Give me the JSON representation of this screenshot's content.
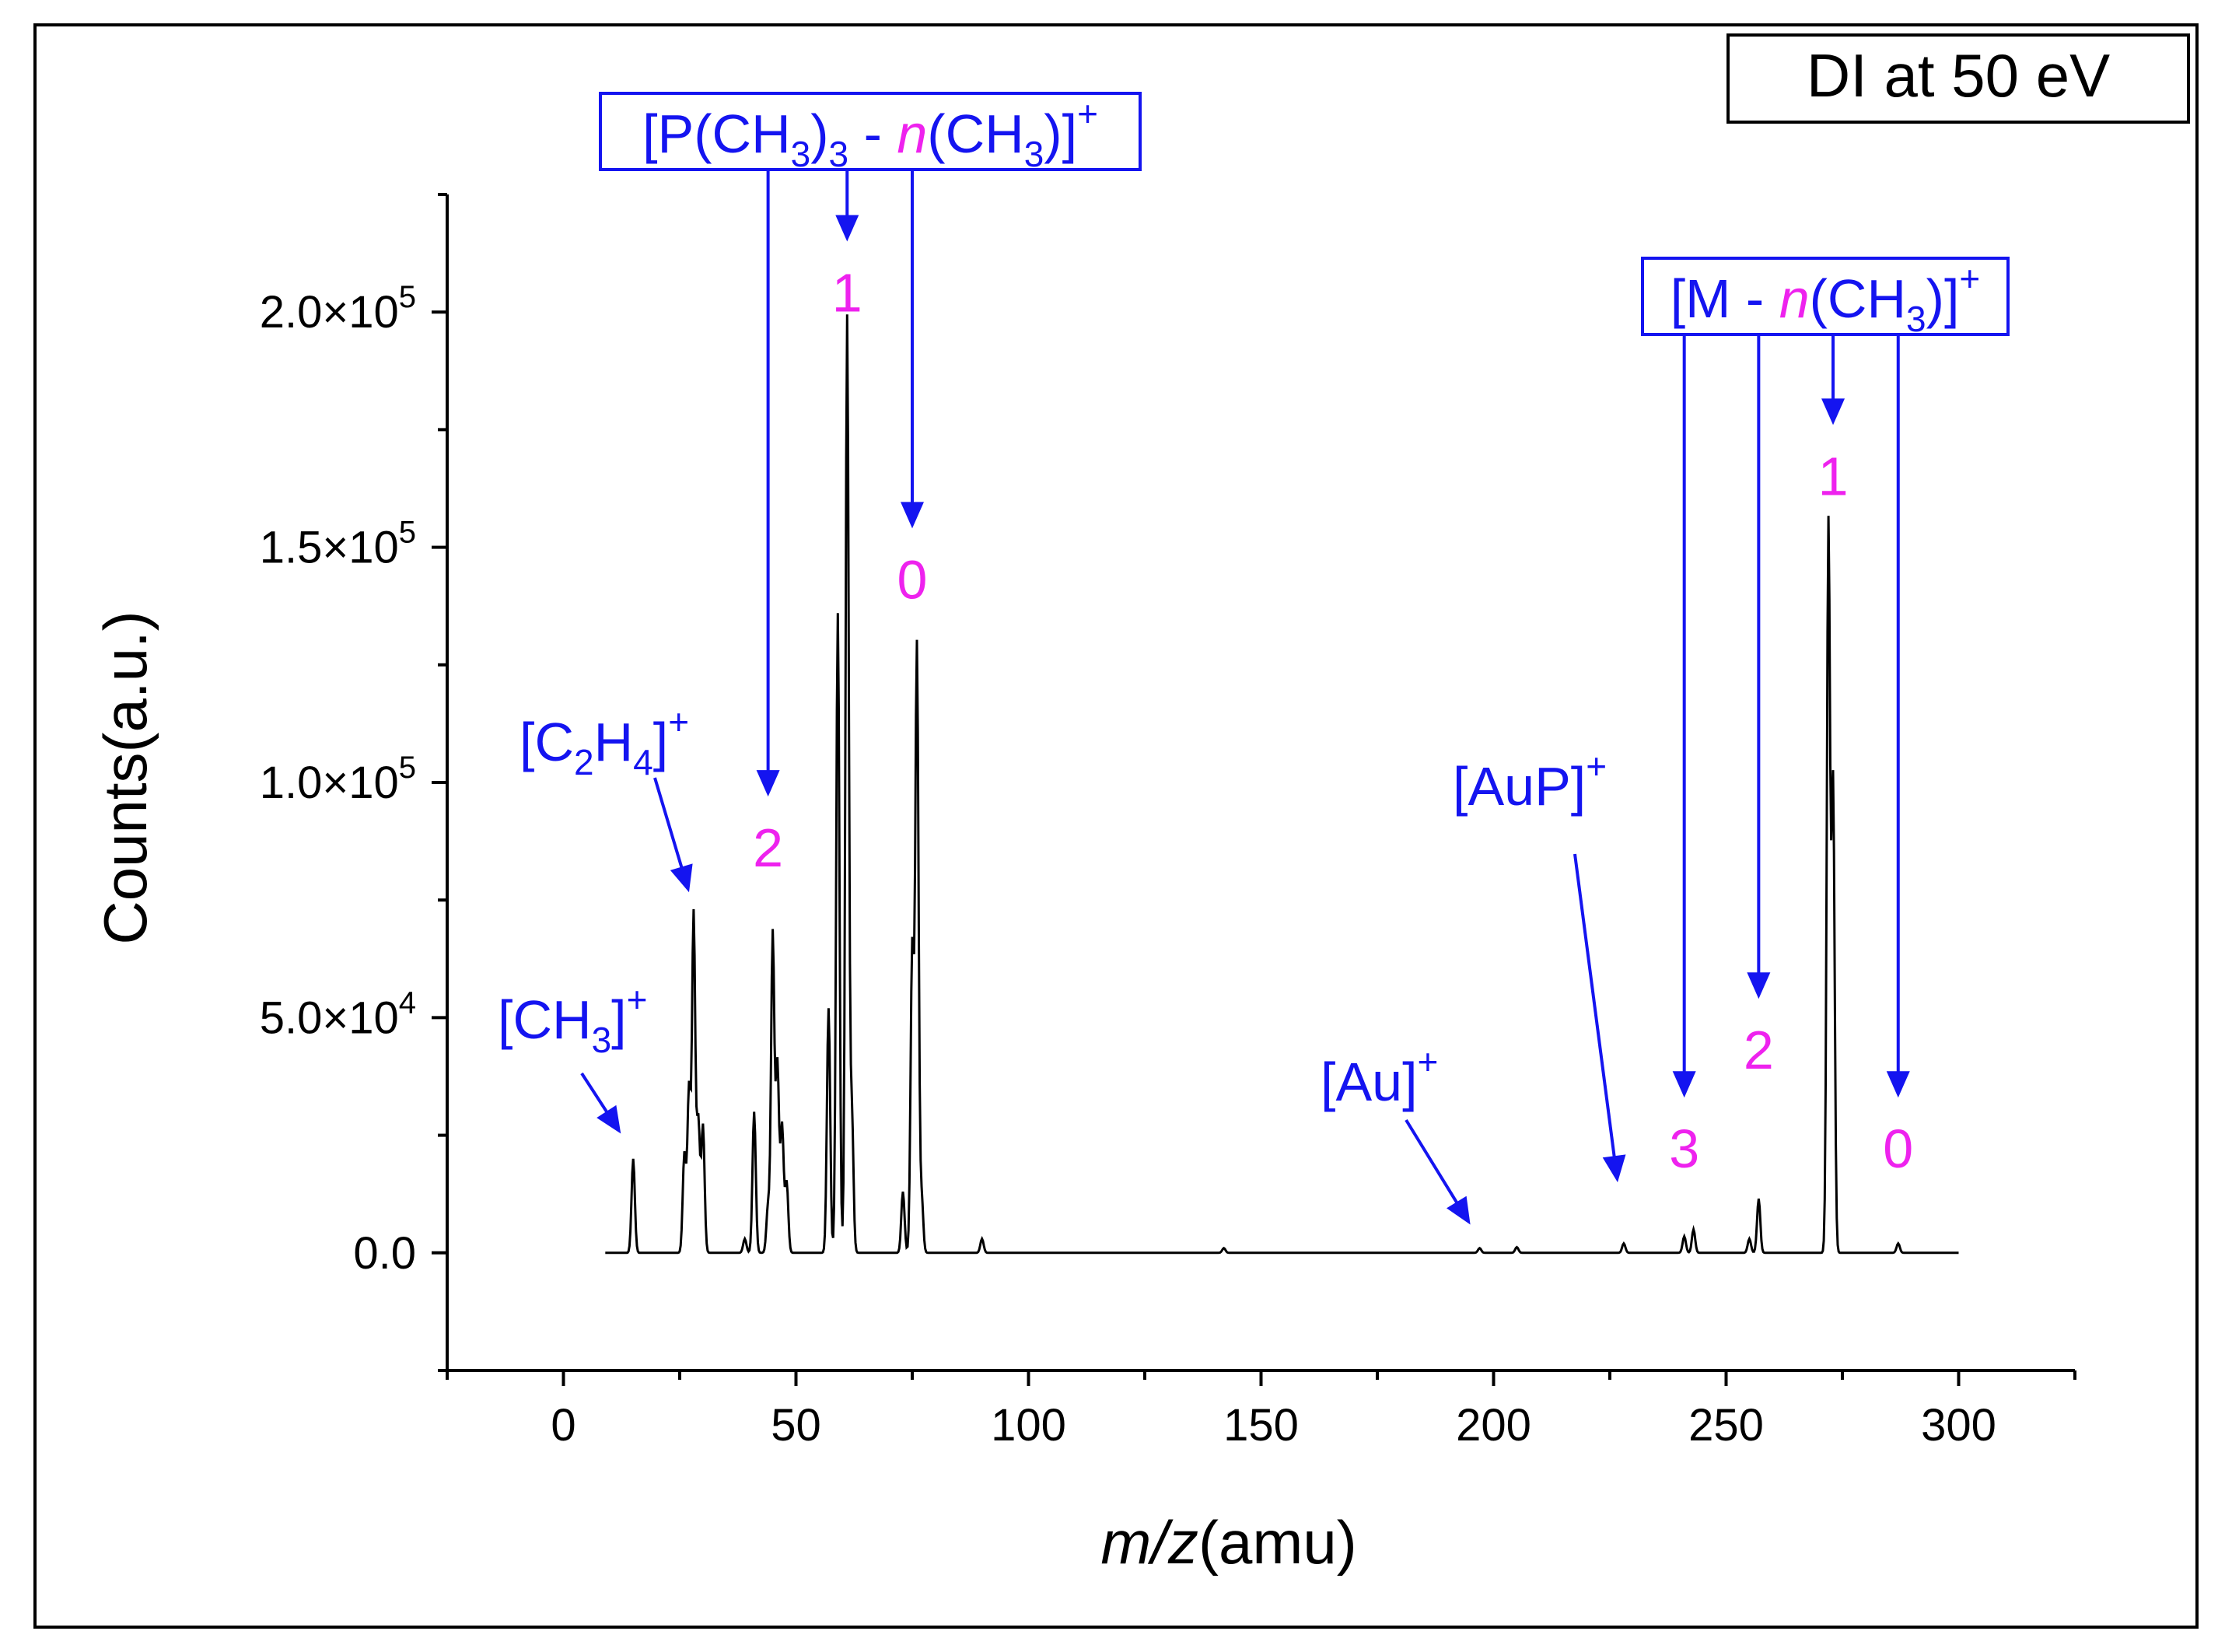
{
  "chart_data": {
    "type": "line",
    "title": "DI at 50 eV",
    "xlabel_italic": "m/z",
    "xlabel_rest": "(amu)",
    "ylabel": "Counts(a.u.)",
    "xlim": [
      -25,
      325
    ],
    "ylim": [
      -25000,
      225000
    ],
    "x_ticks": [
      0,
      50,
      100,
      150,
      200,
      250,
      300
    ],
    "y_ticks": [
      {
        "value": 0,
        "mantissa": "0.0",
        "exponent": ""
      },
      {
        "value": 50000,
        "mantissa": "5.0",
        "exponent": "4"
      },
      {
        "value": 100000,
        "mantissa": "1.0",
        "exponent": "5"
      },
      {
        "value": 150000,
        "mantissa": "1.5",
        "exponent": "5"
      },
      {
        "value": 200000,
        "mantissa": "2.0",
        "exponent": "5"
      }
    ],
    "series": [
      {
        "name": "spectrum",
        "peaks": [
          {
            "x": 15,
            "y": 20000
          },
          {
            "x": 26,
            "y": 21000
          },
          {
            "x": 27,
            "y": 35000
          },
          {
            "x": 28,
            "y": 72000
          },
          {
            "x": 29,
            "y": 28000
          },
          {
            "x": 30,
            "y": 27000
          },
          {
            "x": 39,
            "y": 3000
          },
          {
            "x": 41,
            "y": 30000
          },
          {
            "x": 44,
            "y": 10000
          },
          {
            "x": 45,
            "y": 68000
          },
          {
            "x": 46,
            "y": 40000
          },
          {
            "x": 47,
            "y": 27000
          },
          {
            "x": 48,
            "y": 15000
          },
          {
            "x": 57,
            "y": 52000
          },
          {
            "x": 59,
            "y": 136000
          },
          {
            "x": 61,
            "y": 199000
          },
          {
            "x": 62,
            "y": 30000
          },
          {
            "x": 73,
            "y": 13000
          },
          {
            "x": 75,
            "y": 65000
          },
          {
            "x": 76,
            "y": 129000
          },
          {
            "x": 77,
            "y": 12000
          },
          {
            "x": 90,
            "y": 3000
          },
          {
            "x": 142,
            "y": 1000
          },
          {
            "x": 197,
            "y": 1000
          },
          {
            "x": 205,
            "y": 1200
          },
          {
            "x": 228,
            "y": 2000
          },
          {
            "x": 241,
            "y": 3500
          },
          {
            "x": 243,
            "y": 5000
          },
          {
            "x": 255,
            "y": 3000
          },
          {
            "x": 257,
            "y": 11500
          },
          {
            "x": 272,
            "y": 155000
          },
          {
            "x": 273,
            "y": 100000
          },
          {
            "x": 287,
            "y": 2000
          }
        ]
      }
    ],
    "annotations": {
      "ch3": {
        "text": "[CH",
        "sub": "3",
        "close": "]",
        "sup": "+",
        "target_x": 11,
        "target_y": 27000
      },
      "c2h4": {
        "parts": [
          "[C",
          "2",
          "H",
          "4",
          "]",
          "+"
        ],
        "target_x": 26,
        "target_y": 75000
      },
      "au": {
        "text": "[Au]",
        "sup": "+",
        "target_x": 195,
        "target_y": 6000
      },
      "aup": {
        "text": "[AuP]",
        "sup": "+",
        "target_x": 226,
        "target_y": 15000
      },
      "pme3_group": {
        "label": {
          "p1": "[P(CH",
          "s1": "3",
          "p2": ")",
          "s2": "3",
          "p3": " - ",
          "n": "n",
          "p4": "(CH",
          "s3": "3",
          "p5": ")]",
          "sup": "+"
        },
        "arrows": [
          {
            "x": 44,
            "arrow_tip_y": 97000,
            "number": "2"
          },
          {
            "x": 61,
            "arrow_tip_y": 215000,
            "number": "1"
          },
          {
            "x": 75,
            "arrow_tip_y": 154000,
            "number": "0"
          }
        ]
      },
      "m_group": {
        "label": {
          "p1": "[M - ",
          "n": "n",
          "p2": "(CH",
          "s1": "3",
          "p3": ")]",
          "sup": "+"
        },
        "arrows": [
          {
            "x": 241,
            "arrow_tip_y": 33000,
            "number": "3"
          },
          {
            "x": 257,
            "arrow_tip_y": 54000,
            "number": "2"
          },
          {
            "x": 273,
            "arrow_tip_y": 176000,
            "number": "1"
          },
          {
            "x": 287,
            "arrow_tip_y": 33000,
            "number": "0"
          }
        ]
      }
    },
    "grid": false
  }
}
